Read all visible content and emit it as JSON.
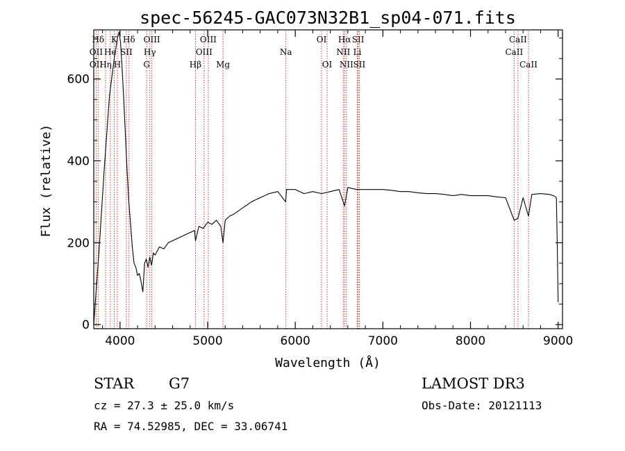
{
  "chart_data": {
    "type": "line",
    "title": "spec-56245-GAC073N32B1_sp04-071.fits",
    "xlabel": "Wavelength (Å)",
    "ylabel": "Flux (relative)",
    "xlim": [
      3700,
      9050
    ],
    "ylim": [
      -10,
      720
    ],
    "x_ticks": [
      4000,
      5000,
      6000,
      7000,
      8000,
      9000
    ],
    "y_ticks": [
      0,
      200,
      400,
      600
    ],
    "grid": false,
    "series": [
      {
        "name": "spectrum",
        "x": [
          3700,
          3760,
          3820,
          3880,
          3940,
          3970,
          3990,
          4005,
          4020,
          4040,
          4060,
          4080,
          4100,
          4120,
          4140,
          4160,
          4180,
          4200,
          4220,
          4240,
          4260,
          4280,
          4300,
          4320,
          4340,
          4360,
          4380,
          4400,
          4450,
          4500,
          4550,
          4600,
          4650,
          4700,
          4750,
          4800,
          4850,
          4861,
          4900,
          4950,
          5000,
          5050,
          5100,
          5150,
          5175,
          5200,
          5250,
          5300,
          5400,
          5500,
          5600,
          5700,
          5800,
          5890,
          5900,
          6000,
          6100,
          6200,
          6300,
          6400,
          6500,
          6563,
          6600,
          6700,
          6800,
          6900,
          7000,
          7100,
          7200,
          7300,
          7400,
          7500,
          7600,
          7700,
          7800,
          7900,
          8000,
          8100,
          8200,
          8300,
          8400,
          8498,
          8542,
          8600,
          8662,
          8700,
          8800,
          8900,
          8950,
          8980,
          8990,
          9000
        ],
        "y": [
          0,
          180,
          380,
          560,
          660,
          700,
          715,
          690,
          640,
          560,
          470,
          380,
          300,
          245,
          190,
          150,
          140,
          120,
          125,
          105,
          80,
          150,
          160,
          140,
          165,
          145,
          175,
          170,
          190,
          185,
          200,
          205,
          210,
          215,
          220,
          225,
          230,
          205,
          240,
          235,
          250,
          245,
          255,
          240,
          200,
          255,
          265,
          270,
          285,
          300,
          310,
          320,
          325,
          300,
          330,
          330,
          320,
          325,
          320,
          325,
          330,
          290,
          335,
          330,
          330,
          330,
          330,
          328,
          325,
          325,
          322,
          320,
          320,
          318,
          315,
          318,
          315,
          315,
          315,
          312,
          310,
          255,
          260,
          310,
          265,
          318,
          320,
          318,
          315,
          310,
          200,
          55
        ]
      }
    ],
    "lines": [
      {
        "label": "Hδ",
        "wave": 3750,
        "row": 0
      },
      {
        "label": "K",
        "wave": 3934,
        "row": 0
      },
      {
        "label": "Hδ",
        "wave": 4102,
        "row": 0
      },
      {
        "label": "OIII",
        "wave": 4363,
        "row": 0
      },
      {
        "label": "OIII",
        "wave": 5007,
        "row": 0
      },
      {
        "label": "OI",
        "wave": 6300,
        "row": 0
      },
      {
        "label": "Hα",
        "wave": 6563,
        "row": 0
      },
      {
        "label": "SII",
        "wave": 6717,
        "row": 0
      },
      {
        "label": "CaII",
        "wave": 8542,
        "row": 0
      },
      {
        "label": "OII",
        "wave": 3727,
        "row": 1
      },
      {
        "label": "He",
        "wave": 3889,
        "row": 1
      },
      {
        "label": "SII",
        "wave": 4072,
        "row": 1
      },
      {
        "label": "Hγ",
        "wave": 4340,
        "row": 1
      },
      {
        "label": "OIII",
        "wave": 4959,
        "row": 1
      },
      {
        "label": "Na",
        "wave": 5893,
        "row": 1
      },
      {
        "label": "NII",
        "wave": 6548,
        "row": 1
      },
      {
        "label": "Li",
        "wave": 6708,
        "row": 1
      },
      {
        "label": "CaII",
        "wave": 8498,
        "row": 1
      },
      {
        "label": "OII",
        "wave": 3727,
        "row": 2
      },
      {
        "label": "Hη",
        "wave": 3835,
        "row": 2
      },
      {
        "label": "H",
        "wave": 3969,
        "row": 2
      },
      {
        "label": "G",
        "wave": 4304,
        "row": 2
      },
      {
        "label": "Hβ",
        "wave": 4861,
        "row": 2
      },
      {
        "label": "Mg",
        "wave": 5175,
        "row": 2
      },
      {
        "label": "OI",
        "wave": 6363,
        "row": 2
      },
      {
        "label": "NII",
        "wave": 6584,
        "row": 2
      },
      {
        "label": "SII",
        "wave": 6731,
        "row": 2
      },
      {
        "label": "CaII",
        "wave": 8662,
        "row": 2
      }
    ]
  },
  "info": {
    "object_class": "STAR",
    "subclass": "G7",
    "survey": "LAMOST DR3",
    "cz": "cz = 27.3 ± 25.0 km/s",
    "obs_date": "Obs-Date: 20121113",
    "coords": "RA =  74.52985, DEC =  33.06741"
  },
  "colors": {
    "spectrum": "#000000",
    "line_marker": "#c0392b",
    "axes": "#000000"
  }
}
